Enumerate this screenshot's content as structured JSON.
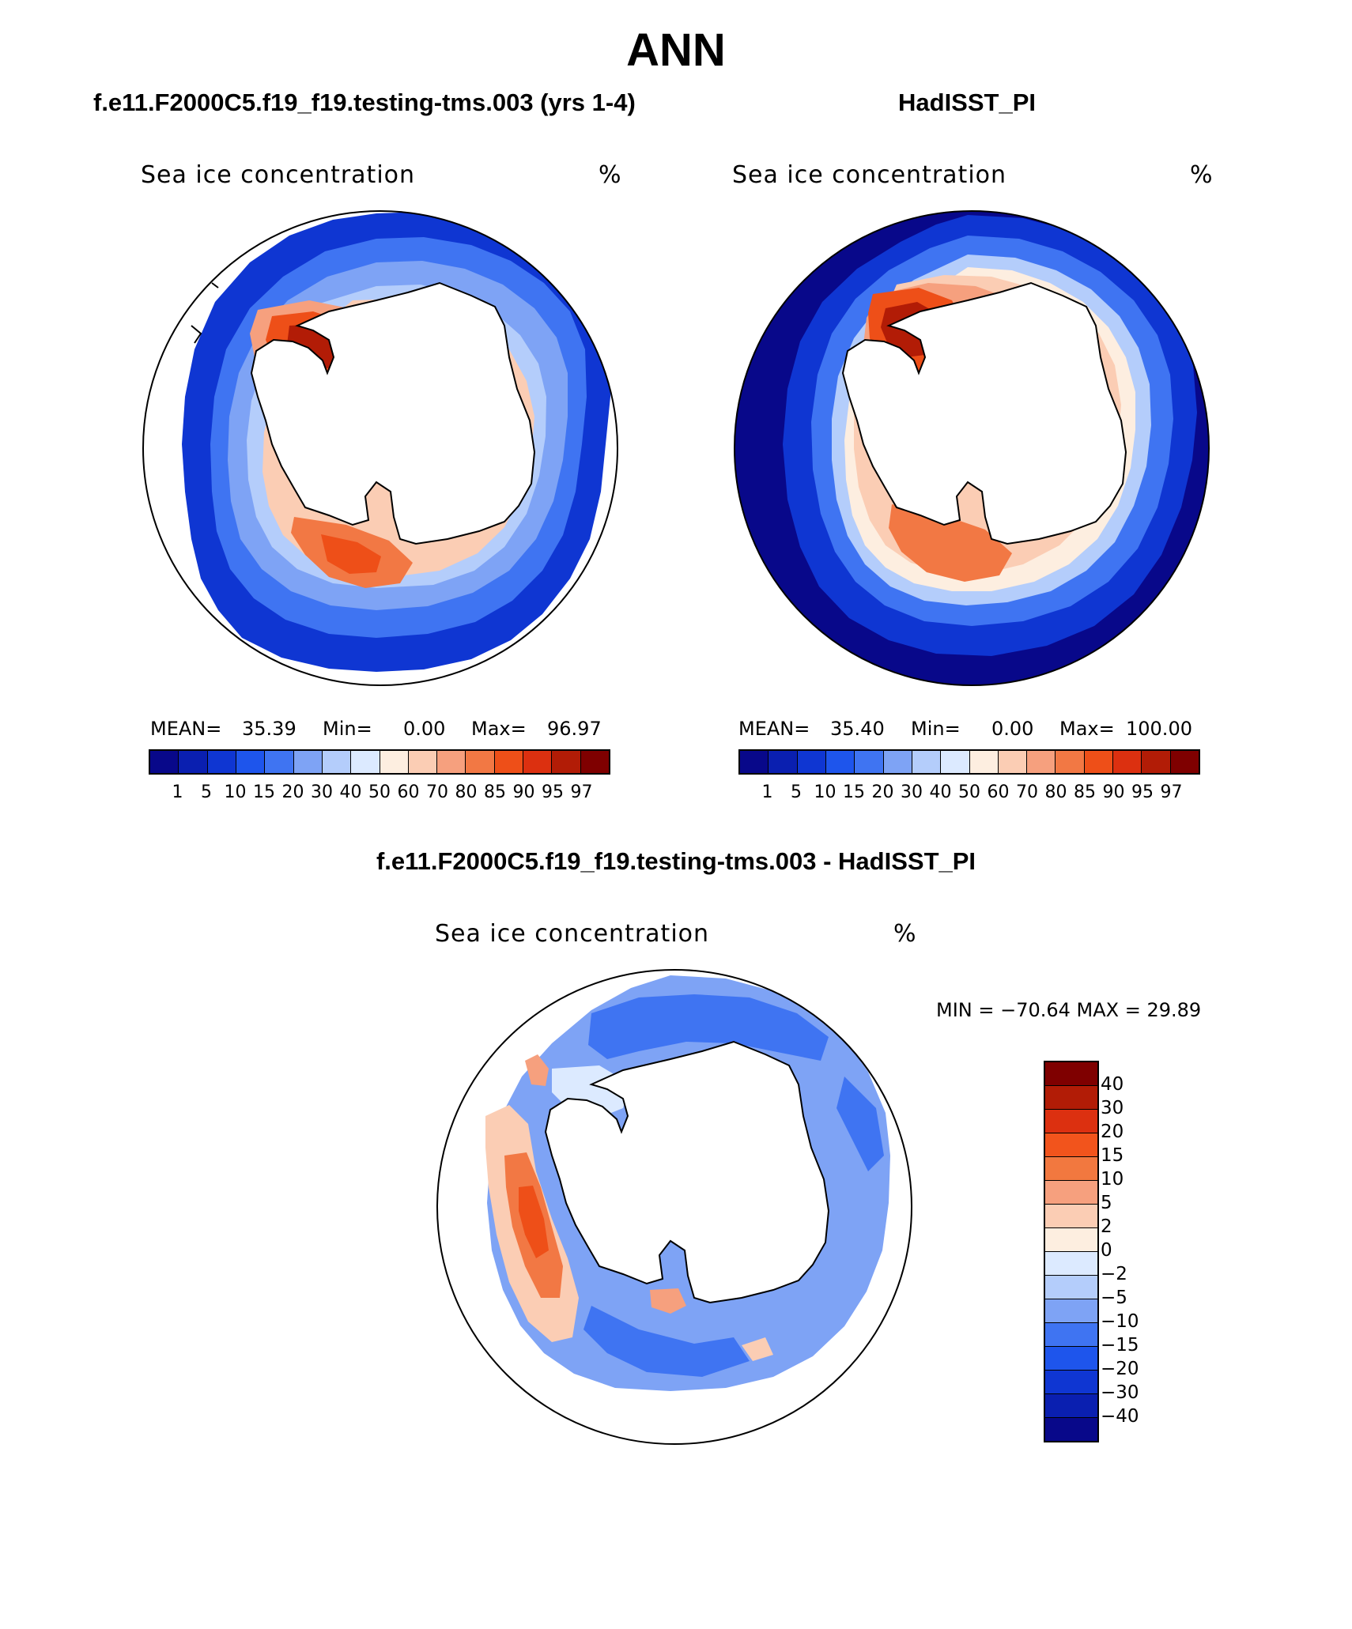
{
  "title": "ANN",
  "panels": {
    "model": {
      "title": "f.e11.F2000C5.f19_f19.testing-tms.003 (yrs 1-4)",
      "variable": "Sea ice concentration",
      "units": "%",
      "mean_label": "MEAN=",
      "mean_value": "35.39",
      "min_label": "Min=",
      "min_value": "0.00",
      "max_label": "Max=",
      "max_value": "96.97"
    },
    "obs": {
      "title": "HadISST_PI",
      "variable": "Sea ice concentration",
      "units": "%",
      "mean_label": "MEAN=",
      "mean_value": "35.40",
      "min_label": "Min=",
      "min_value": "0.00",
      "max_label": "Max=",
      "max_value": "100.00"
    },
    "diff": {
      "title": "f.e11.F2000C5.f19_f19.testing-tms.003 - HadISST_PI",
      "variable": "Sea ice concentration",
      "units": "%",
      "minmax_text": "MIN = −70.64 MAX =   29.89"
    }
  },
  "colorbar_abs": {
    "ticks": [
      "1",
      "5",
      "10",
      "15",
      "20",
      "30",
      "40",
      "50",
      "60",
      "70",
      "80",
      "85",
      "90",
      "95",
      "97"
    ],
    "colors": [
      "#08088a",
      "#0a1fb0",
      "#0f36d2",
      "#1e55ec",
      "#3f74f2",
      "#7ea3f5",
      "#b4cdfb",
      "#dceaff",
      "#fdeee0",
      "#fbcdb4",
      "#f6a07e",
      "#f27844",
      "#ee4f18",
      "#dc3010",
      "#b21c06",
      "#7f0000"
    ]
  },
  "colorbar_diff": {
    "ticks": [
      "40",
      "30",
      "20",
      "15",
      "10",
      "5",
      "2",
      "0",
      "−2",
      "−5",
      "−10",
      "−15",
      "−20",
      "−30",
      "−40"
    ],
    "colors": [
      "#7f0000",
      "#b21c06",
      "#dc3010",
      "#f2541c",
      "#f2783f",
      "#f6a07e",
      "#fbcdb4",
      "#fdeee0",
      "#dceaff",
      "#b4cdfb",
      "#7ea3f5",
      "#3f74f2",
      "#1e55ec",
      "#0f36d2",
      "#0a1fb0",
      "#08088a"
    ]
  },
  "map_colors": {
    "outer_blue": "#0a1fb0",
    "deep_blue": "#08088a",
    "mid_blue": "#3f74f2",
    "light_blue": "#b4cdfb",
    "pale_blue": "#dceaff",
    "pale_orange": "#fbcdb4",
    "orange": "#f27844",
    "red": "#dc3010",
    "dark_red": "#b21c06",
    "land": "#ffffff",
    "coast": "#000000"
  }
}
